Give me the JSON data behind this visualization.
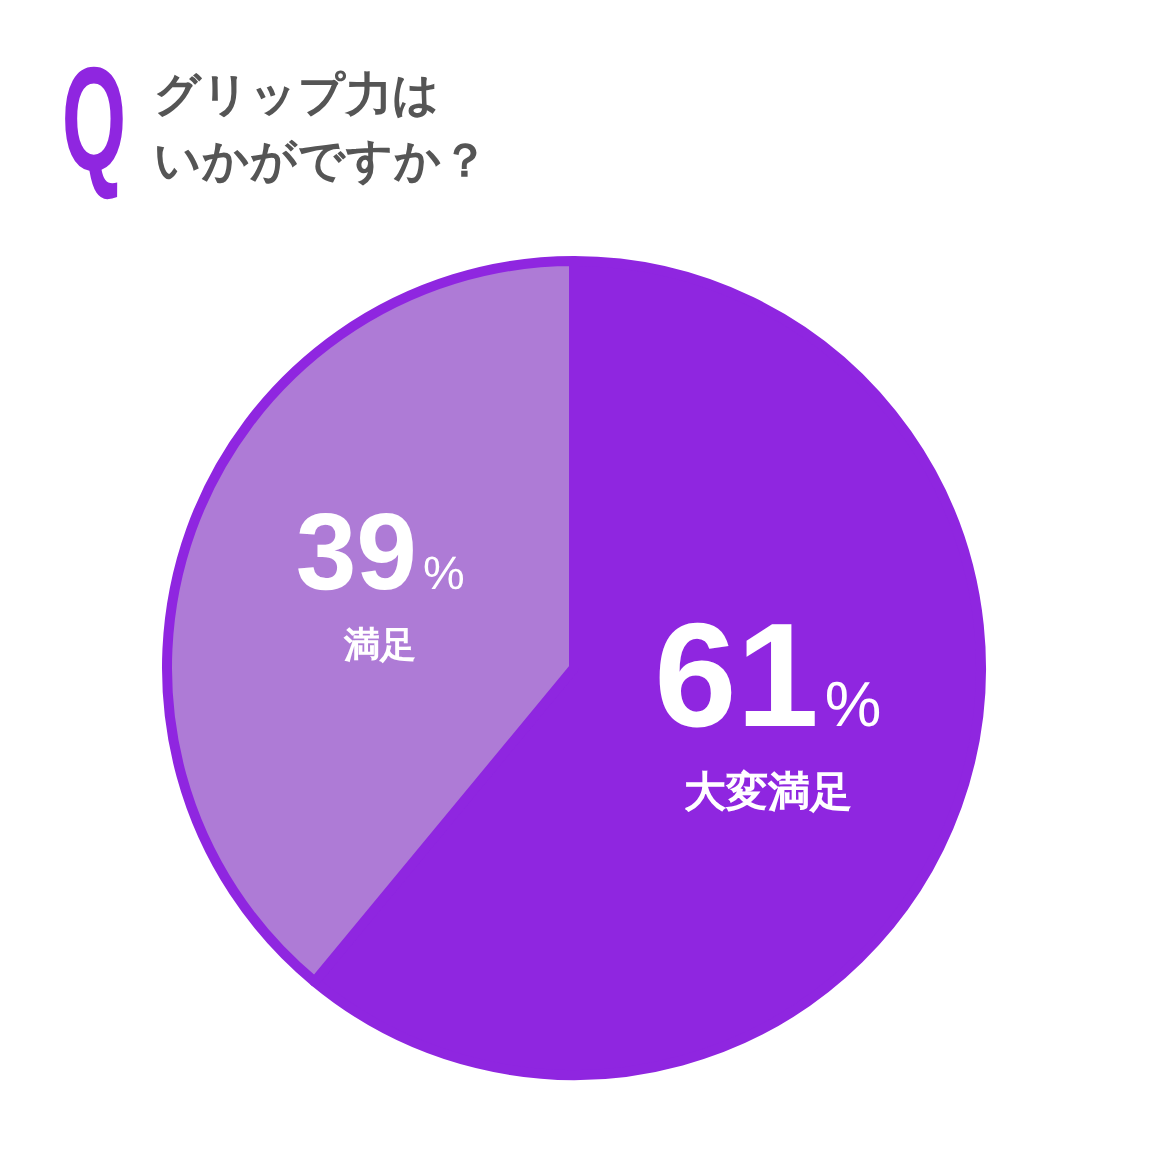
{
  "chart_data": {
    "type": "pie",
    "title": "グリップ力はいかがですか？",
    "annotations": [
      "Q"
    ],
    "categories": [
      "大変満足",
      "満足"
    ],
    "values": [
      61,
      39
    ],
    "colors": [
      "#8f26e0",
      "#ae7bd6"
    ],
    "value_labels": [
      "61%",
      "39%"
    ]
  }
}
